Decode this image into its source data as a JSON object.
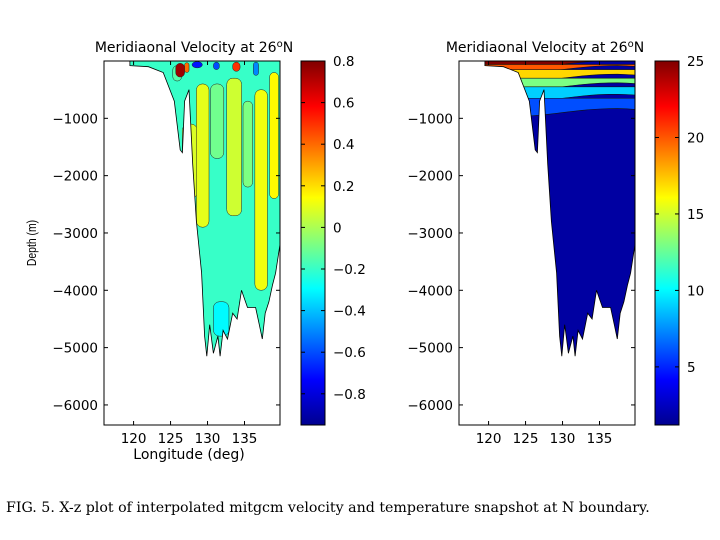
{
  "figure": {
    "caption": "FIG. 5.  X-z plot of interpolated mitgcm velocity and temperature snapshot at N boundary."
  },
  "chart_data": [
    {
      "type": "heatmap",
      "title": "Meridiaonal Velocity at 26",
      "title_sup": "o",
      "title_suffix": "N",
      "xlabel": "Longitude (deg)",
      "ylabel": "Depth (m)",
      "xlim": [
        116,
        139.8
      ],
      "ylim": [
        -6350,
        0
      ],
      "xticks": [
        120,
        125,
        130,
        135
      ],
      "xtick_labels": [
        "120",
        "125",
        "130",
        "135"
      ],
      "yticks": [
        -1000,
        -2000,
        -3000,
        -4000,
        -5000,
        -6000
      ],
      "ytick_labels": [
        "−1000",
        "−2000",
        "−3000",
        "−4000",
        "−5000",
        "−6000"
      ],
      "colorbar": {
        "min": -0.95,
        "max": 0.8,
        "ticks": [
          0.8,
          0.6,
          0.4,
          0.2,
          0,
          -0.2,
          -0.4,
          -0.6,
          -0.8
        ],
        "tick_labels": [
          "0.8",
          "0.6",
          "0.4",
          "0.2",
          "0",
          "−0.2",
          "−0.4",
          "−0.6",
          "−0.8"
        ]
      },
      "bathymetry": [
        [
          119.5,
          -80
        ],
        [
          122,
          -100
        ],
        [
          124,
          -200
        ],
        [
          125.5,
          -700
        ],
        [
          126.3,
          -1550
        ],
        [
          126.6,
          -1600
        ],
        [
          126.9,
          -700
        ],
        [
          127.5,
          -500
        ],
        [
          128,
          -1800
        ],
        [
          128.5,
          -2800
        ],
        [
          129.2,
          -3700
        ],
        [
          129.6,
          -4800
        ],
        [
          129.9,
          -5150
        ],
        [
          130.3,
          -4600
        ],
        [
          130.8,
          -5100
        ],
        [
          131.4,
          -4800
        ],
        [
          131.7,
          -5150
        ],
        [
          132.1,
          -4700
        ],
        [
          132.7,
          -4850
        ],
        [
          133.4,
          -4400
        ],
        [
          134,
          -4500
        ],
        [
          134.6,
          -4000
        ],
        [
          135.4,
          -4300
        ],
        [
          136.5,
          -4300
        ],
        [
          137,
          -4600
        ],
        [
          137.4,
          -4850
        ],
        [
          137.8,
          -4400
        ],
        [
          138.3,
          -4200
        ],
        [
          138.8,
          -3900
        ],
        [
          139.2,
          -3700
        ],
        [
          139.8,
          -3200
        ]
      ],
      "regions": [
        {
          "value": 0.08,
          "lon": [
            126.6,
            128.6
          ],
          "depth": [
            -2400,
            -1100
          ]
        },
        {
          "value": 0.1,
          "lon": [
            128.5,
            130.2
          ],
          "depth": [
            -2900,
            -400
          ]
        },
        {
          "value": 0.06,
          "lon": [
            132.6,
            134.6
          ],
          "depth": [
            -2700,
            -300
          ]
        },
        {
          "value": 0.12,
          "lon": [
            136.4,
            138.1
          ],
          "depth": [
            -4000,
            -500
          ]
        },
        {
          "value": 0.15,
          "lon": [
            138.4,
            139.6
          ],
          "depth": [
            -2400,
            -200
          ]
        },
        {
          "value": -0.1,
          "lon": [
            130.4,
            132.2
          ],
          "depth": [
            -1700,
            -400
          ]
        },
        {
          "value": -0.08,
          "lon": [
            134.8,
            136.1
          ],
          "depth": [
            -2200,
            -700
          ]
        },
        {
          "value": -0.15,
          "lon": [
            125.3,
            126.5
          ],
          "depth": [
            -350,
            -80
          ]
        },
        {
          "value": -0.3,
          "lon": [
            130.8,
            132.9
          ],
          "depth": [
            -4800,
            -4200
          ]
        },
        {
          "value": 0.75,
          "lon": [
            125.7,
            126.9
          ],
          "depth": [
            -280,
            -40
          ]
        },
        {
          "value": 0.4,
          "lon": [
            126.9,
            127.5
          ],
          "depth": [
            -200,
            -30
          ]
        },
        {
          "value": -0.7,
          "lon": [
            127.9,
            129.3
          ],
          "depth": [
            -120,
            -10
          ]
        },
        {
          "value": -0.6,
          "lon": [
            130.8,
            131.6
          ],
          "depth": [
            -150,
            -20
          ]
        },
        {
          "value": 0.5,
          "lon": [
            133.4,
            134.4
          ],
          "depth": [
            -180,
            -20
          ]
        },
        {
          "value": -0.5,
          "lon": [
            136.2,
            136.9
          ],
          "depth": [
            -250,
            -20
          ]
        }
      ]
    },
    {
      "type": "heatmap",
      "title": "Meridiaonal Velocity at 26",
      "title_sup": "o",
      "title_suffix": "N",
      "xlim": [
        116,
        139.8
      ],
      "ylim": [
        -6350,
        0
      ],
      "xticks": [
        120,
        125,
        130,
        135
      ],
      "xtick_labels": [
        "120",
        "125",
        "130",
        "135"
      ],
      "yticks": [
        -1000,
        -2000,
        -3000,
        -4000,
        -5000,
        -6000
      ],
      "ytick_labels": [
        "−1000",
        "−2000",
        "−3000",
        "−4000",
        "−5000",
        "−6000"
      ],
      "colorbar": {
        "min": 1.2,
        "max": 25,
        "ticks": [
          25,
          20,
          15,
          10,
          5
        ],
        "tick_labels": [
          "25",
          "20",
          "15",
          "10",
          "5"
        ]
      },
      "layers": [
        {
          "value": 25,
          "top": 0,
          "bottom": -60
        },
        {
          "value": 20,
          "top": -60,
          "bottom": -150
        },
        {
          "value": 17,
          "top": -150,
          "bottom": -300
        },
        {
          "value": 13,
          "top": -300,
          "bottom": -450
        },
        {
          "value": 9,
          "top": -450,
          "bottom": -650
        },
        {
          "value": 6,
          "top": -650,
          "bottom": -900
        }
      ],
      "deep_value": 2,
      "bathymetry": [
        [
          119.5,
          -80
        ],
        [
          122,
          -100
        ],
        [
          124,
          -200
        ],
        [
          125.5,
          -700
        ],
        [
          126.3,
          -1550
        ],
        [
          126.6,
          -1600
        ],
        [
          126.9,
          -700
        ],
        [
          127.5,
          -500
        ],
        [
          128,
          -1800
        ],
        [
          128.5,
          -2800
        ],
        [
          129.2,
          -3700
        ],
        [
          129.6,
          -4800
        ],
        [
          129.9,
          -5150
        ],
        [
          130.3,
          -4600
        ],
        [
          130.8,
          -5100
        ],
        [
          131.4,
          -4800
        ],
        [
          131.7,
          -5150
        ],
        [
          132.1,
          -4700
        ],
        [
          132.7,
          -4850
        ],
        [
          133.4,
          -4400
        ],
        [
          134,
          -4500
        ],
        [
          134.6,
          -4000
        ],
        [
          135.4,
          -4300
        ],
        [
          136.5,
          -4300
        ],
        [
          137,
          -4600
        ],
        [
          137.4,
          -4850
        ],
        [
          137.8,
          -4400
        ],
        [
          138.3,
          -4200
        ],
        [
          138.8,
          -3900
        ],
        [
          139.2,
          -3700
        ],
        [
          139.8,
          -3200
        ]
      ]
    }
  ]
}
